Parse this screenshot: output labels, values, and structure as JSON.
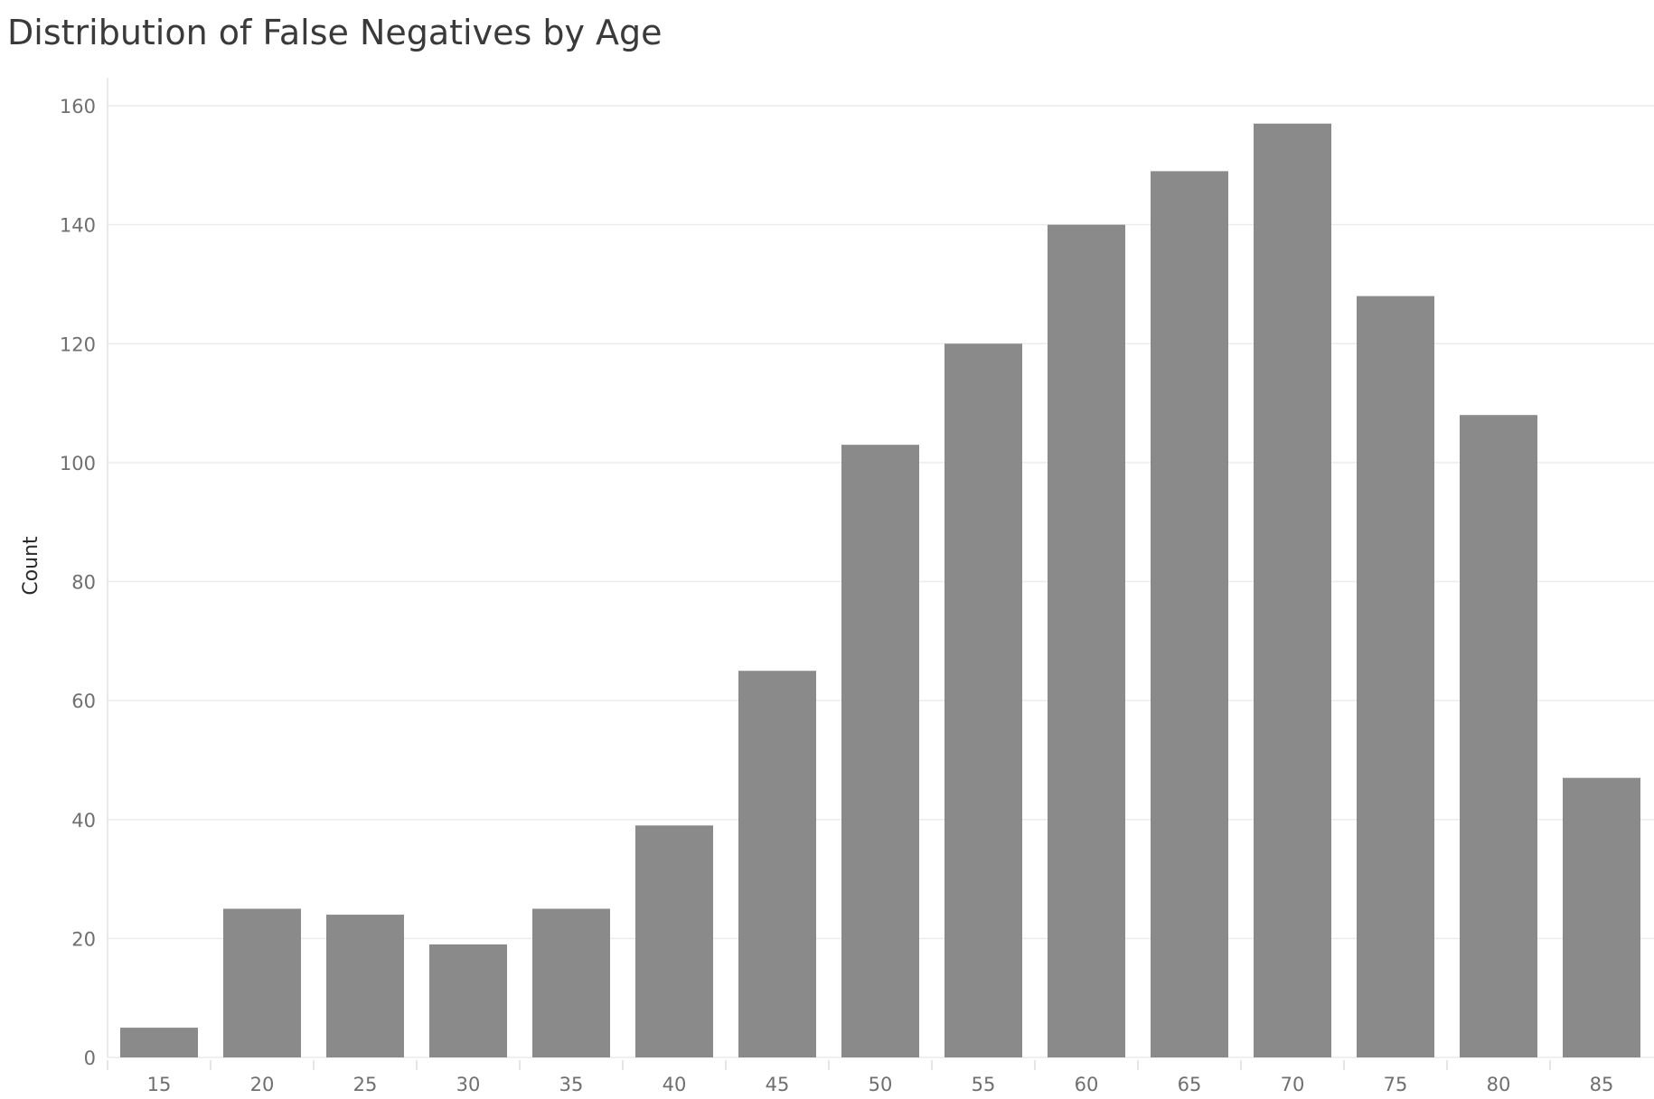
{
  "chart_data": {
    "type": "bar",
    "title": "Distribution of False Negatives by Age",
    "xlabel": "",
    "ylabel": "Count",
    "categories": [
      "15",
      "20",
      "25",
      "30",
      "35",
      "40",
      "45",
      "50",
      "55",
      "60",
      "65",
      "70",
      "75",
      "80",
      "85"
    ],
    "values": [
      5,
      25,
      24,
      19,
      25,
      39,
      65,
      103,
      120,
      140,
      149,
      157,
      128,
      108,
      47
    ],
    "ylim": [
      0,
      160
    ],
    "yticks": [
      0,
      20,
      40,
      60,
      80,
      100,
      120,
      140,
      160
    ],
    "grid": true,
    "bar_color": "#8a8a8a",
    "grid_color": "#ececec"
  }
}
